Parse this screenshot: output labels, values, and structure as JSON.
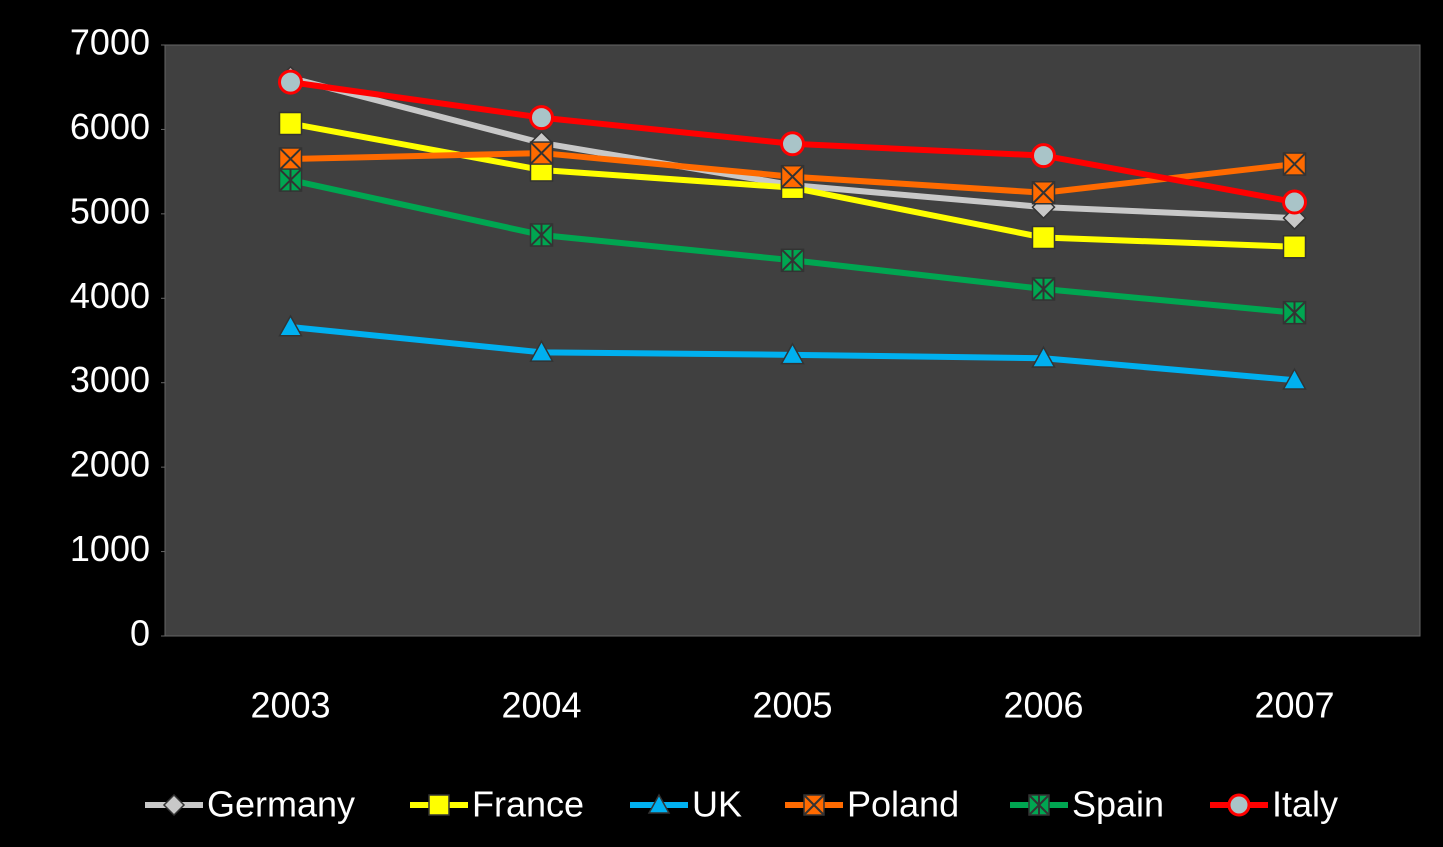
{
  "chart_data": {
    "type": "line",
    "categories": [
      "2003",
      "2004",
      "2005",
      "2006",
      "2007"
    ],
    "series": [
      {
        "name": "Germany",
        "color": "#c8c8c8",
        "marker": "diamond",
        "values": [
          6610,
          5840,
          5340,
          5080,
          4950
        ]
      },
      {
        "name": "France",
        "color": "#ffff00",
        "marker": "square",
        "values": [
          6070,
          5520,
          5310,
          4720,
          4610
        ]
      },
      {
        "name": "UK",
        "color": "#00b0f0",
        "marker": "triangle",
        "values": [
          3660,
          3360,
          3330,
          3290,
          3030
        ]
      },
      {
        "name": "Poland",
        "color": "#ff6a00",
        "marker": "square-x",
        "values": [
          5650,
          5720,
          5440,
          5250,
          5590
        ]
      },
      {
        "name": "Spain",
        "color": "#00a651",
        "marker": "square-star",
        "values": [
          5400,
          4750,
          4450,
          4110,
          3830
        ]
      },
      {
        "name": "Italy",
        "color": "#ff0000",
        "marker": "circle",
        "values": [
          6560,
          6140,
          5830,
          5690,
          5140
        ]
      }
    ],
    "ylim": [
      0,
      7000
    ],
    "yticks": [
      0,
      1000,
      2000,
      3000,
      4000,
      5000,
      6000,
      7000
    ],
    "legend": "bottom"
  }
}
